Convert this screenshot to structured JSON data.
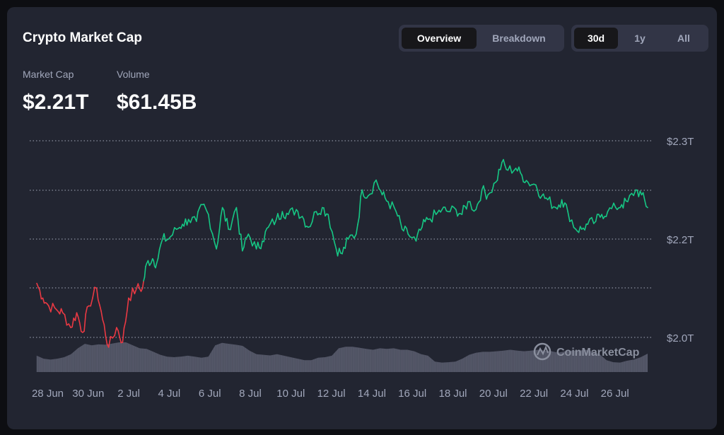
{
  "header": {
    "title": "Crypto Market Cap"
  },
  "views": {
    "items": [
      "Overview",
      "Breakdown"
    ],
    "active": "Overview"
  },
  "ranges": {
    "items": [
      "30d",
      "1y",
      "All"
    ],
    "active": "30d"
  },
  "stats": {
    "market_cap_label": "Market Cap",
    "market_cap_value": "$2.21T",
    "volume_label": "Volume",
    "volume_value": "$61.45B"
  },
  "watermark": "CoinMarketCap",
  "colors": {
    "background": "#222531",
    "up": "#16c784",
    "down": "#ea3943",
    "volume": "#5e6173",
    "grid": "#8a8f9e"
  },
  "chart_data": {
    "type": "line",
    "title": "",
    "xlabel": "",
    "ylabel": "",
    "x_ticks": [
      "28 Jun",
      "30 Jun",
      "2 Jul",
      "4 Jul",
      "6 Jul",
      "8 Jul",
      "10 Jul",
      "12 Jul",
      "14 Jul",
      "16 Jul",
      "18 Jul",
      "20 Jul",
      "22 Jul",
      "24 Jul",
      "26 Jul"
    ],
    "y_ticks": [
      "$2.3T",
      "$2.2T",
      "$2.0T"
    ],
    "grid": "dotted horizontal",
    "series": [
      {
        "kind": "market_cap",
        "color_rule": "red below start value, green above",
        "x": [
          27.0,
          27.3,
          27.6,
          28.0,
          28.3,
          28.7,
          29.0,
          29.3,
          29.6,
          30.0,
          30.3,
          30.6,
          31.0,
          31.3,
          31.6,
          32.0,
          32.3,
          32.5,
          32.8,
          33.0,
          33.3,
          33.6,
          34.0,
          34.3,
          34.6,
          35.0,
          35.3,
          35.6,
          36.0,
          36.3,
          36.6,
          37.0,
          37.3,
          37.6,
          38.0,
          38.3,
          38.6,
          39.0,
          39.3,
          39.6,
          40.0,
          40.3,
          40.6,
          41.0,
          41.3,
          41.6,
          42.0,
          42.3,
          42.6,
          43.0,
          43.3,
          43.6,
          44.0,
          44.3,
          44.6,
          45.0,
          45.3,
          45.6,
          46.0,
          46.3,
          46.6,
          47.0,
          47.3,
          47.6,
          48.0,
          48.3,
          48.6,
          49.0,
          49.3,
          49.6,
          50.0,
          50.3,
          50.6,
          51.0,
          51.3,
          51.6,
          52.0,
          52.3,
          52.6,
          53.0,
          53.3,
          53.6,
          54.0,
          54.3,
          54.6,
          55.0,
          55.3,
          55.6,
          56.0,
          56.3,
          56.6,
          57.0,
          57.3,
          57.6
        ],
        "values": [
          2.155,
          2.14,
          2.132,
          2.128,
          2.125,
          2.11,
          2.125,
          2.105,
          2.132,
          2.15,
          2.118,
          2.09,
          2.11,
          2.095,
          2.14,
          2.15,
          2.15,
          2.175,
          2.18,
          2.175,
          2.2,
          2.2,
          2.21,
          2.215,
          2.22,
          2.218,
          2.235,
          2.225,
          2.19,
          2.232,
          2.21,
          2.232,
          2.188,
          2.205,
          2.19,
          2.198,
          2.212,
          2.22,
          2.228,
          2.225,
          2.23,
          2.223,
          2.212,
          2.228,
          2.232,
          2.225,
          2.19,
          2.185,
          2.2,
          2.205,
          2.25,
          2.244,
          2.26,
          2.245,
          2.238,
          2.228,
          2.21,
          2.205,
          2.198,
          2.212,
          2.22,
          2.225,
          2.23,
          2.228,
          2.23,
          2.225,
          2.238,
          2.23,
          2.25,
          2.245,
          2.258,
          2.278,
          2.27,
          2.272,
          2.265,
          2.258,
          2.255,
          2.244,
          2.24,
          2.232,
          2.24,
          2.228,
          2.21,
          2.21,
          2.215,
          2.218,
          2.225,
          2.228,
          2.232,
          2.235,
          2.238,
          2.25,
          2.245,
          2.232
        ]
      },
      {
        "kind": "volume",
        "values": [
          0.55,
          0.45,
          0.42,
          0.45,
          0.5,
          0.6,
          0.8,
          0.95,
          0.9,
          0.93,
          0.92,
          0.96,
          1.0,
          1.0,
          0.9,
          0.8,
          0.78,
          0.68,
          0.58,
          0.52,
          0.5,
          0.52,
          0.55,
          0.52,
          0.48,
          0.52,
          0.9,
          0.98,
          0.95,
          0.92,
          0.88,
          0.72,
          0.6,
          0.58,
          0.56,
          0.6,
          0.55,
          0.5,
          0.45,
          0.4,
          0.4,
          0.48,
          0.5,
          0.55,
          0.8,
          0.85,
          0.85,
          0.82,
          0.78,
          0.75,
          0.8,
          0.78,
          0.8,
          0.75,
          0.75,
          0.7,
          0.6,
          0.55,
          0.35,
          0.32,
          0.33,
          0.35,
          0.45,
          0.58,
          0.65,
          0.68,
          0.68,
          0.7,
          0.72,
          0.75,
          0.72,
          0.7,
          0.72,
          0.75,
          0.72,
          0.7,
          0.65,
          0.7,
          0.72,
          0.72,
          0.75,
          0.68,
          0.6,
          0.4,
          0.33,
          0.32,
          0.38,
          0.42,
          0.5,
          0.62
        ]
      }
    ]
  }
}
